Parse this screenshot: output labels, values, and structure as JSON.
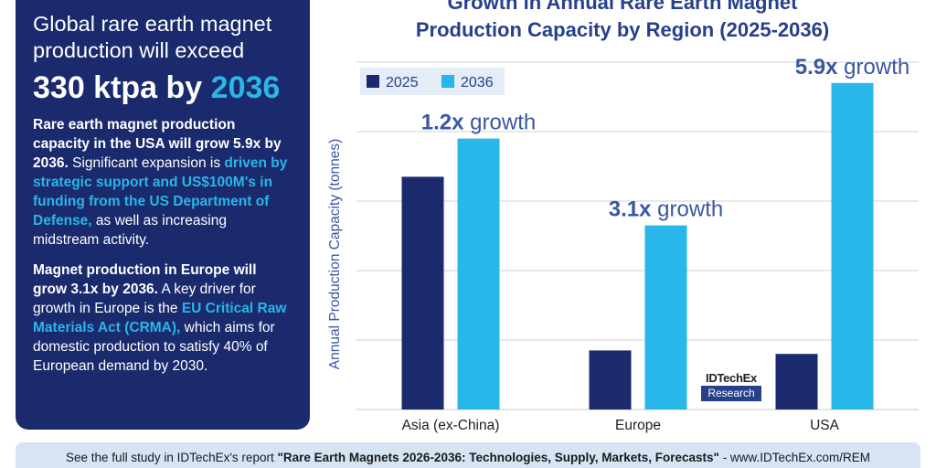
{
  "panel": {
    "headline": "Global rare earth magnet production will exceed",
    "big_prefix": "330 ktpa by ",
    "big_highlight": "2036",
    "para1_bold": "Rare earth magnet production capacity in the USA will grow 5.9x by 2036.",
    "para1_text": " Significant expansion is ",
    "para1_highlight": "driven by strategic support and US$100M's in funding from the US Department of Defense,",
    "para1_end": " as well as increasing midstream activity.",
    "para2_bold": "Magnet production in Europe will grow 3.1x by 2036.",
    "para2_text": " A key driver for growth in Europe is the ",
    "para2_highlight": "EU Critical Raw Materials Act (CRMA),",
    "para2_end": " which aims for domestic production to satisfy 40% of European demand by 2030."
  },
  "chart_data": {
    "type": "bar",
    "title_line1": "Growth in Annual Rare Earth Magnet",
    "title_line2": "Production Capacity by Region (2025-2036)",
    "ylabel": "Annual Production Capacity (tonnes)",
    "categories": [
      "Asia (ex-China)",
      "Europe",
      "USA"
    ],
    "series": [
      {
        "name": "2025",
        "color": "#1a2a6c",
        "values": [
          33.5,
          8.5,
          8.0
        ]
      },
      {
        "name": "2036",
        "color": "#29b6e8",
        "values": [
          39.0,
          26.5,
          47.0
        ]
      }
    ],
    "ylim": [
      0,
      50
    ],
    "gridlines": [
      10,
      20,
      30,
      40,
      50
    ],
    "annotations": [
      {
        "mult": "1.2x",
        "word": " growth"
      },
      {
        "mult": "3.1x",
        "word": " growth"
      },
      {
        "mult": "5.9x",
        "word": " growth"
      }
    ]
  },
  "logo": {
    "top": "IDTechEx",
    "bottom": "Research"
  },
  "footer": {
    "prefix": "See the full study in IDTechEx's report ",
    "report": "\"Rare Earth Magnets 2026-2036: Technologies, Supply, Markets, Forecasts\"",
    "suffix": " - www.IDTechEx.com/REM"
  }
}
